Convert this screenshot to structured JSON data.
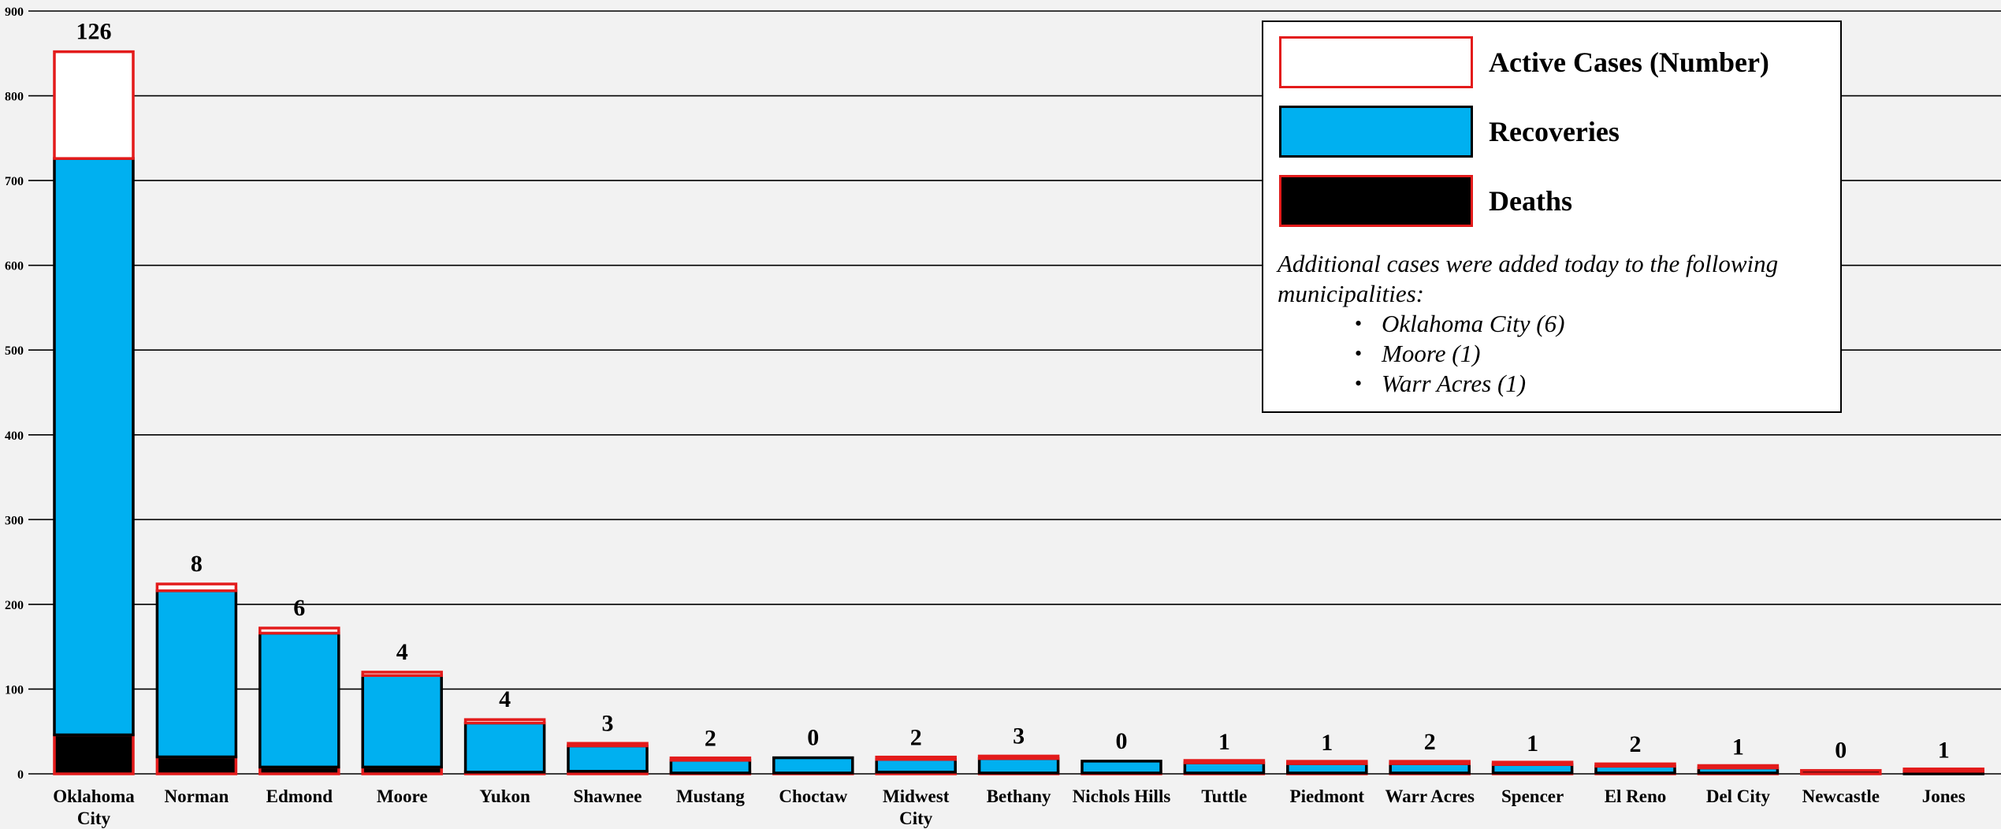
{
  "chart_data": {
    "type": "bar",
    "stacked": true,
    "categories": [
      "Oklahoma City",
      "Norman",
      "Edmond",
      "Moore",
      "Yukon",
      "Shawnee",
      "Mustang",
      "Choctaw",
      "Midwest City",
      "Bethany",
      "Nichols Hills",
      "Tuttle",
      "Piedmont",
      "Warr Acres",
      "Spencer",
      "El Reno",
      "Del City",
      "Newcastle",
      "Jones"
    ],
    "category_lines": [
      [
        "Oklahoma",
        "City"
      ],
      [
        "Norman"
      ],
      [
        "Edmond"
      ],
      [
        "Moore"
      ],
      [
        "Yukon"
      ],
      [
        "Shawnee"
      ],
      [
        "Mustang"
      ],
      [
        "Choctaw"
      ],
      [
        "Midwest",
        "City"
      ],
      [
        "Bethany"
      ],
      [
        "Nichols Hills"
      ],
      [
        "Tuttle"
      ],
      [
        "Piedmont"
      ],
      [
        "Warr Acres"
      ],
      [
        "Spencer"
      ],
      [
        "El Reno"
      ],
      [
        "Del City"
      ],
      [
        "Newcastle"
      ],
      [
        "Jones"
      ]
    ],
    "series": [
      {
        "name": "Deaths",
        "color": "#000000",
        "border": "#e31b1b",
        "values": [
          46,
          20,
          8,
          8,
          2,
          3,
          1,
          1,
          2,
          1,
          1,
          1,
          1,
          1,
          1,
          1,
          1,
          4,
          0
        ]
      },
      {
        "name": "Recoveries",
        "color": "#00b0f0",
        "border": "#000000",
        "values": [
          680,
          196,
          158,
          108,
          58,
          30,
          15,
          18,
          15,
          17,
          14,
          12,
          11,
          11,
          10,
          8,
          6,
          0,
          3
        ]
      },
      {
        "name": "Active Cases (Number)",
        "color": "#ffffff",
        "border": "#e31b1b",
        "values": [
          126,
          8,
          6,
          4,
          4,
          3,
          2,
          0,
          2,
          3,
          0,
          1,
          1,
          2,
          1,
          2,
          1,
          0,
          1
        ]
      }
    ],
    "data_labels": [
      "126",
      "8",
      "6",
      "4",
      "4",
      "3",
      "2",
      "0",
      "2",
      "3",
      "0",
      "1",
      "1",
      "2",
      "1",
      "2",
      "1",
      "0",
      "1"
    ],
    "ylim": [
      0,
      900
    ],
    "yticks": [
      0,
      100,
      200,
      300,
      400,
      500,
      600,
      700,
      800,
      900
    ],
    "title": "",
    "xlabel": "",
    "ylabel": "",
    "grid": true,
    "legend_position": "top-right"
  },
  "legend": {
    "items": [
      {
        "label": "Active Cases (Number)",
        "fill": "#ffffff",
        "border": "#e31b1b"
      },
      {
        "label": "Recoveries",
        "fill": "#00b0f0",
        "border": "#000000"
      },
      {
        "label": "Deaths",
        "fill": "#000000",
        "border": "#e31b1b"
      }
    ],
    "note": "Additional cases were added today to the following municipalities:",
    "note_items": [
      "Oklahoma City (6)",
      "Moore (1)",
      "Warr Acres (1)"
    ]
  }
}
